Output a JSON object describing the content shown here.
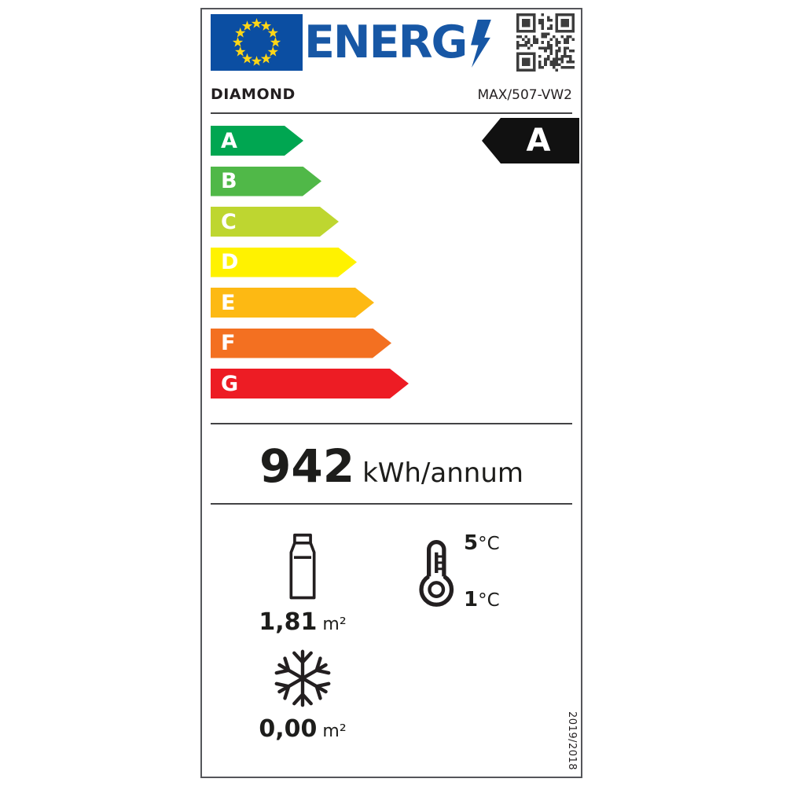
{
  "energy_label": {
    "header": {
      "logo_text": "ENERG"
    },
    "brand": "DIAMOND",
    "model": "MAX/507-VW2",
    "efficiency_scale": [
      {
        "grade": "A",
        "color": "#00a651"
      },
      {
        "grade": "B",
        "color": "#50b848"
      },
      {
        "grade": "C",
        "color": "#bed630"
      },
      {
        "grade": "D",
        "color": "#fff200"
      },
      {
        "grade": "E",
        "color": "#fdb913"
      },
      {
        "grade": "F",
        "color": "#f37021"
      },
      {
        "grade": "G",
        "color": "#ed1c24"
      }
    ],
    "rating": {
      "grade": "A",
      "color": "#111111"
    },
    "annual_energy": {
      "value": "942",
      "unit": "kWh/annum"
    },
    "chilled_display_area": {
      "value": "1,81",
      "unit": "m²"
    },
    "operating_temperature": {
      "max": "5",
      "min": "1",
      "unit": "°C"
    },
    "frozen_display_area": {
      "value": "0,00",
      "unit": "m²"
    },
    "regulation": "2019/2018",
    "colors": {
      "flag_blue": "#0b4ea2",
      "star_yellow": "#ffd617",
      "logo_blue": "#1757a5",
      "qr_dark": "#3d3d3d"
    }
  }
}
